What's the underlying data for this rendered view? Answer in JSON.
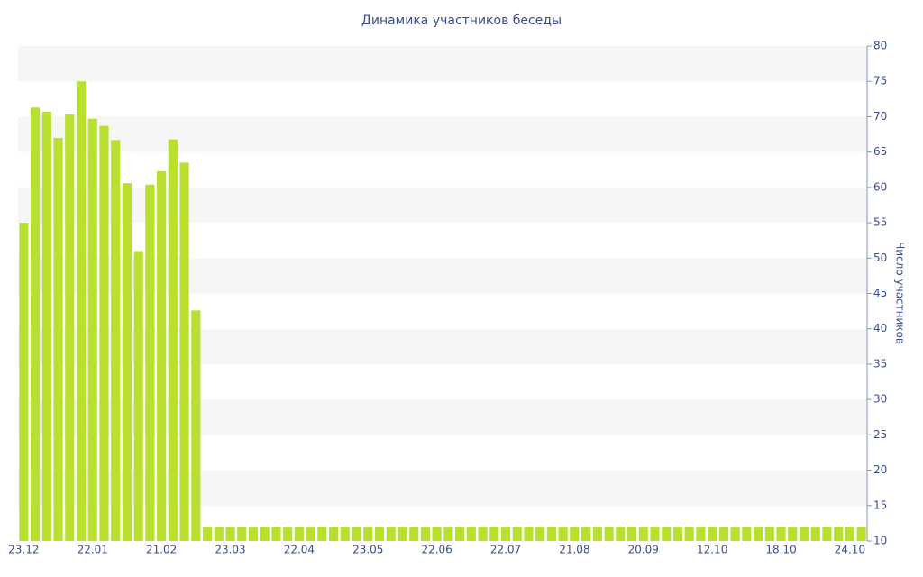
{
  "chart_data": {
    "type": "bar",
    "title": "Динамика участников беседы",
    "y_label": "Число участников",
    "categories": [
      "23.12",
      null,
      null,
      null,
      null,
      null,
      "22.01",
      null,
      null,
      null,
      null,
      null,
      "21.02",
      null,
      null,
      null,
      null,
      null,
      "23.03",
      null,
      null,
      null,
      null,
      null,
      "22.04",
      null,
      null,
      null,
      null,
      null,
      "23.05",
      null,
      null,
      null,
      null,
      null,
      "22.06",
      null,
      null,
      null,
      null,
      null,
      "22.07",
      null,
      null,
      null,
      null,
      null,
      "21.08",
      null,
      null,
      null,
      null,
      null,
      "20.09",
      null,
      null,
      null,
      null,
      null,
      "12.10",
      null,
      null,
      null,
      null,
      null,
      "18.10",
      null,
      null,
      null,
      null,
      null,
      "24.10",
      null
    ],
    "values": [
      55,
      71.3,
      70.7,
      67,
      70.3,
      75,
      69.7,
      68.7,
      66.7,
      60.6,
      51,
      60.4,
      62.3,
      66.8,
      63.5,
      42.6,
      12,
      12,
      12,
      12,
      12,
      12,
      12,
      12,
      12,
      12,
      12,
      12,
      12,
      12,
      12,
      12,
      12,
      12,
      12,
      12,
      12,
      12,
      12,
      12,
      12,
      12,
      12,
      12,
      12,
      12,
      12,
      12,
      12,
      12,
      12,
      12,
      12,
      12,
      12,
      12,
      12,
      12,
      12,
      12,
      12,
      12,
      12,
      12,
      12,
      12,
      12,
      12,
      12,
      12,
      12,
      12,
      12,
      12
    ],
    "color": "#b8e02f",
    "ylim": [
      10,
      80
    ],
    "yticks": [
      10,
      15,
      20,
      25,
      30,
      35,
      40,
      45,
      50,
      55,
      60,
      65,
      70,
      75,
      80
    ],
    "y_axis_side": "right",
    "grid": "bands"
  }
}
